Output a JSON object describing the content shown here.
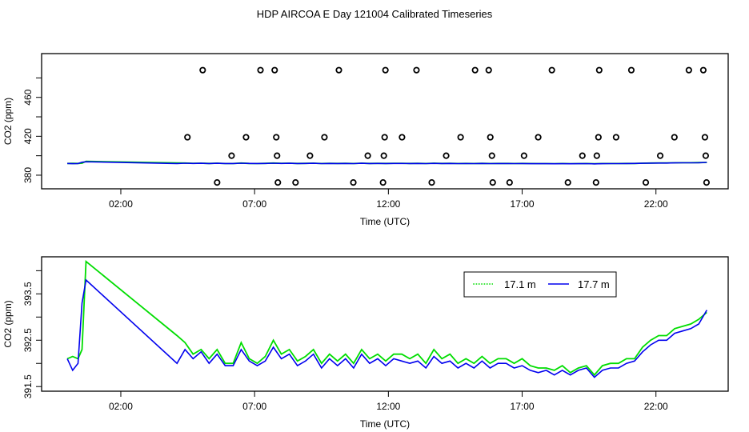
{
  "title": "HDP AIRCOA E  Day 121004  Calibrated Timeseries",
  "colors": {
    "s171": "#00dd00",
    "s177": "#0000ee",
    "outlier": "#000000"
  },
  "chart_data": [
    {
      "type": "scatter",
      "name": "full-range",
      "xlabel": "Time (UTC)",
      "ylabel": "CO2 (ppm)",
      "xlim_hours": [
        -0.96,
        24.7
      ],
      "ylim": [
        366,
        505
      ],
      "x_ticks": [
        {
          "h": 2,
          "label": "02:00"
        },
        {
          "h": 7,
          "label": "07:00"
        },
        {
          "h": 12,
          "label": "12:00"
        },
        {
          "h": 17,
          "label": "17:00"
        },
        {
          "h": 22,
          "label": "22:00"
        }
      ],
      "y_ticks": [
        {
          "v": 380,
          "label": "380"
        },
        {
          "v": 400,
          "label": ""
        },
        {
          "v": 420,
          "label": "420"
        },
        {
          "v": 440,
          "label": ""
        },
        {
          "v": 460,
          "label": "460"
        },
        {
          "v": 480,
          "label": ""
        }
      ],
      "outliers": [
        {
          "v": 488,
          "h": [
            5.06,
            7.22,
            7.75,
            10.15,
            11.89,
            13.05,
            15.24,
            15.75,
            18.11,
            19.88,
            21.08,
            23.23,
            23.77
          ]
        },
        {
          "v": 419,
          "h": [
            4.49,
            6.68,
            7.81,
            9.61,
            11.86,
            12.51,
            14.7,
            15.81,
            17.6,
            19.85,
            20.51,
            22.69,
            23.83
          ]
        },
        {
          "v": 400,
          "h": [
            6.14,
            7.84,
            9.07,
            11.23,
            11.83,
            14.16,
            15.87,
            17.07,
            19.25,
            19.79,
            22.16,
            23.86
          ]
        },
        {
          "v": 372.5,
          "h": [
            5.6,
            7.87,
            8.53,
            10.69,
            11.8,
            13.62,
            15.9,
            16.53,
            18.71,
            19.76,
            21.62,
            23.89
          ]
        }
      ]
    },
    {
      "type": "line",
      "name": "zoomed",
      "xlabel": "Time (UTC)",
      "ylabel": "CO2 (ppm)",
      "xlim_hours": [
        -0.96,
        24.7
      ],
      "ylim": [
        391.4,
        394.3
      ],
      "x_ticks": [
        {
          "h": 2,
          "label": "02:00"
        },
        {
          "h": 7,
          "label": "07:00"
        },
        {
          "h": 12,
          "label": "12:00"
        },
        {
          "h": 17,
          "label": "17:00"
        },
        {
          "h": 22,
          "label": "22:00"
        }
      ],
      "y_ticks": [
        {
          "v": 391.5,
          "label": "391.5"
        },
        {
          "v": 392,
          "label": ""
        },
        {
          "v": 392.5,
          "label": "392.5"
        },
        {
          "v": 393,
          "label": ""
        },
        {
          "v": 393.5,
          "label": "393.5"
        },
        {
          "v": 394,
          "label": ""
        }
      ],
      "legend": {
        "position": "top-right",
        "entries": [
          "17.1 m",
          "17.7 m"
        ]
      },
      "x": [
        0,
        0.2,
        0.4,
        0.55,
        0.7,
        4.1,
        4.4,
        4.7,
        5.0,
        5.3,
        5.6,
        5.9,
        6.2,
        6.5,
        6.8,
        7.1,
        7.4,
        7.7,
        8.0,
        8.3,
        8.6,
        8.9,
        9.2,
        9.5,
        9.8,
        10.1,
        10.4,
        10.7,
        11.0,
        11.3,
        11.6,
        11.9,
        12.2,
        12.5,
        12.8,
        13.1,
        13.4,
        13.7,
        14.0,
        14.3,
        14.6,
        14.9,
        15.2,
        15.5,
        15.8,
        16.1,
        16.4,
        16.7,
        17.0,
        17.3,
        17.6,
        17.9,
        18.2,
        18.5,
        18.8,
        19.1,
        19.4,
        19.7,
        20.0,
        20.3,
        20.6,
        20.9,
        21.2,
        21.5,
        21.8,
        22.1,
        22.4,
        22.7,
        23.0,
        23.3,
        23.6,
        23.9
      ],
      "series": [
        {
          "name": "17.1 m",
          "values": [
            392.1,
            392.15,
            392.1,
            392.3,
            394.2,
            392.6,
            392.45,
            392.2,
            392.3,
            392.1,
            392.3,
            392.0,
            392.0,
            392.45,
            392.1,
            392.0,
            392.15,
            392.5,
            392.2,
            392.3,
            392.05,
            392.15,
            392.3,
            392.0,
            392.2,
            392.05,
            392.2,
            392.0,
            392.3,
            392.1,
            392.2,
            392.05,
            392.2,
            392.2,
            392.1,
            392.2,
            392.0,
            392.3,
            392.1,
            392.2,
            392.0,
            392.1,
            392.0,
            392.15,
            392.0,
            392.1,
            392.1,
            392.0,
            392.1,
            391.95,
            391.9,
            391.9,
            391.85,
            391.95,
            391.8,
            391.9,
            391.95,
            391.75,
            391.95,
            392.0,
            392.0,
            392.1,
            392.1,
            392.35,
            392.5,
            392.6,
            392.6,
            392.75,
            392.8,
            392.85,
            392.95,
            393.1
          ]
        },
        {
          "name": "17.7 m",
          "values": [
            392.1,
            391.85,
            392.0,
            393.3,
            393.8,
            392.0,
            392.3,
            392.1,
            392.25,
            392.0,
            392.2,
            391.95,
            391.95,
            392.3,
            392.05,
            391.95,
            392.05,
            392.35,
            392.1,
            392.2,
            391.95,
            392.05,
            392.2,
            391.9,
            392.1,
            391.95,
            392.1,
            391.9,
            392.2,
            392.0,
            392.1,
            391.95,
            392.1,
            392.05,
            392.0,
            392.05,
            391.9,
            392.15,
            392.0,
            392.05,
            391.9,
            392.0,
            391.9,
            392.05,
            391.9,
            392.0,
            392.0,
            391.9,
            391.95,
            391.85,
            391.8,
            391.85,
            391.75,
            391.85,
            391.75,
            391.85,
            391.9,
            391.7,
            391.85,
            391.9,
            391.9,
            392.0,
            392.05,
            392.25,
            392.4,
            392.5,
            392.5,
            392.65,
            392.7,
            392.75,
            392.85,
            393.15
          ]
        }
      ]
    }
  ]
}
